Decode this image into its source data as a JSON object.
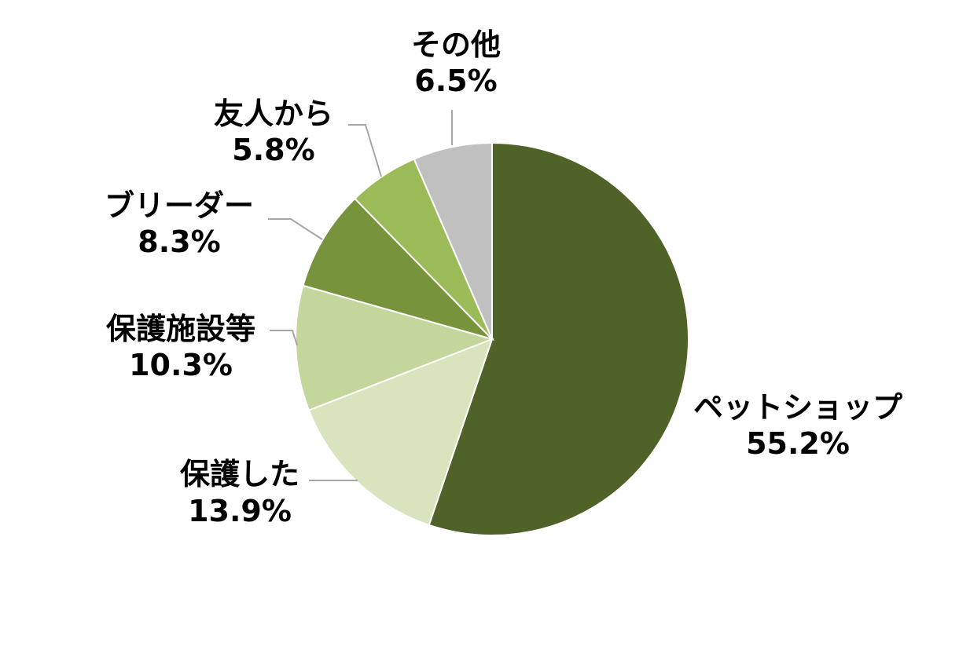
{
  "chart_data": {
    "type": "pie",
    "title": "",
    "start_angle_deg": 0,
    "direction": "clockwise",
    "slices": [
      {
        "label": "ペットショップ",
        "value": 55.2,
        "display": "55.2%",
        "color": "#4f6228"
      },
      {
        "label": "保護した",
        "value": 13.9,
        "display": "13.9%",
        "color": "#d7e4bd"
      },
      {
        "label": "保護施設等",
        "value": 10.3,
        "display": "10.3%",
        "color": "#c3d69b"
      },
      {
        "label": "ブリーダー",
        "value": 8.3,
        "display": "8.3%",
        "color": "#77933c"
      },
      {
        "label": "友人から",
        "value": 5.8,
        "display": "5.8%",
        "color": "#9bbb59"
      },
      {
        "label": "その他",
        "value": 6.5,
        "display": "6.5%",
        "color": "#c0c0c0"
      }
    ],
    "leader_line_color": "#a6a6a6",
    "slice_border_color": "#ffffff"
  }
}
